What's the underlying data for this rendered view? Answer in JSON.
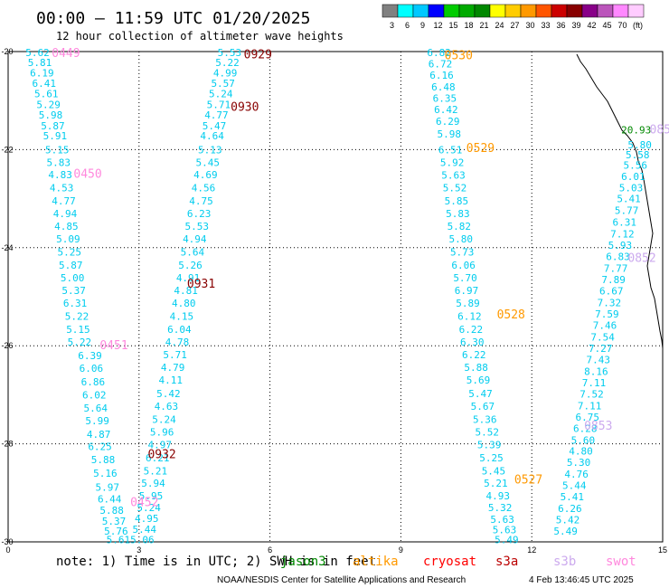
{
  "header": {
    "title": "00:00 – 11:59 UTC 01/20/2025",
    "subtitle": "12 hour collection of altimeter wave heights"
  },
  "colorbar": {
    "colors": [
      "#808080",
      "#00ffff",
      "#00c8ff",
      "#0000ff",
      "#00cc00",
      "#00aa00",
      "#008800",
      "#ffff00",
      "#ffcc00",
      "#ff9900",
      "#ff5500",
      "#cc0000",
      "#880000",
      "#880088",
      "#bb55bb",
      "#ff88ff",
      "#ffccff"
    ],
    "ticks": [
      "3",
      "6",
      "9",
      "12",
      "15",
      "18",
      "21",
      "24",
      "27",
      "30",
      "33",
      "36",
      "39",
      "42",
      "45",
      "70",
      "(ft)"
    ]
  },
  "footer": {
    "note": "note: 1) Time is in UTC; 2) SWH is in feet",
    "credit": "NOAA/NESDIS Center for Satellite Applications and Research",
    "timestamp": "4 Feb 13:46:45 UTC 2025",
    "satellites": [
      {
        "name": "jason3",
        "color": "#008800"
      },
      {
        "name": "altika",
        "color": "#ff9900"
      },
      {
        "name": "cryosat",
        "color": "#ff0000"
      },
      {
        "name": "s3a",
        "color": "#bb0000"
      },
      {
        "name": "s3b",
        "color": "#ccaaee"
      },
      {
        "name": "swot",
        "color": "#ff88dd"
      }
    ]
  },
  "chart_data": {
    "type": "scatter",
    "xlim": [
      0,
      15
    ],
    "ylim": [
      -30,
      -20
    ],
    "x_ticks": [
      "0",
      "3",
      "6",
      "9",
      "12",
      "15"
    ],
    "y_ticks": [
      "-20",
      "-22",
      "-24",
      "-26",
      "-28",
      "-30"
    ],
    "grid": true,
    "tracks": [
      {
        "color": "#00ccee",
        "points": [
          [
            0.4,
            -20.02,
            "5.62"
          ],
          [
            0.45,
            -20.22,
            "5.81"
          ],
          [
            0.5,
            -20.43,
            "6.19"
          ],
          [
            0.55,
            -20.65,
            "6.41"
          ],
          [
            0.6,
            -20.86,
            "5.61"
          ],
          [
            0.65,
            -21.08,
            "5.29"
          ],
          [
            0.7,
            -21.29,
            "5.98"
          ],
          [
            0.75,
            -21.51,
            "5.87"
          ],
          [
            0.8,
            -21.72,
            "5.91"
          ],
          [
            0.85,
            -22.0,
            "5.15"
          ],
          [
            0.88,
            -22.26,
            "5.83"
          ],
          [
            0.92,
            -22.51,
            "4.83"
          ],
          [
            0.95,
            -22.78,
            "4.53"
          ],
          [
            1.0,
            -23.04,
            "4.77"
          ],
          [
            1.03,
            -23.3,
            "4.94"
          ],
          [
            1.06,
            -23.56,
            "4.85"
          ],
          [
            1.1,
            -23.82,
            "5.09"
          ],
          [
            1.13,
            -24.09,
            "5.25"
          ],
          [
            1.16,
            -24.35,
            "5.87"
          ],
          [
            1.2,
            -24.61,
            "5.00"
          ],
          [
            1.23,
            -24.87,
            "5.37"
          ],
          [
            1.26,
            -25.13,
            "6.31"
          ],
          [
            1.3,
            -25.4,
            "5.22"
          ],
          [
            1.33,
            -25.66,
            "5.15"
          ],
          [
            1.36,
            -25.92,
            "5.22"
          ],
          [
            1.6,
            -26.2,
            "6.39"
          ],
          [
            1.63,
            -26.46,
            "6.06"
          ],
          [
            1.67,
            -26.73,
            "6.86"
          ],
          [
            1.7,
            -27.0,
            "6.02"
          ],
          [
            1.73,
            -27.27,
            "5.64"
          ],
          [
            1.77,
            -27.53,
            "5.99"
          ],
          [
            1.8,
            -27.8,
            "4.87"
          ],
          [
            1.83,
            -28.05,
            "6.25"
          ],
          [
            1.9,
            -28.32,
            "5.88"
          ],
          [
            1.95,
            -28.6,
            "5.16"
          ],
          [
            2.0,
            -28.88,
            "5.97"
          ],
          [
            2.05,
            -29.12,
            "6.44"
          ],
          [
            2.1,
            -29.35,
            "5.88"
          ],
          [
            2.15,
            -29.58,
            "5.37"
          ],
          [
            2.2,
            -29.78,
            "5.76"
          ],
          [
            2.25,
            -29.95,
            "5.61"
          ]
        ]
      },
      {
        "color": "#00ccee",
        "points": [
          [
            4.8,
            -20.02,
            "5.53"
          ],
          [
            4.75,
            -20.22,
            "5.22"
          ],
          [
            4.7,
            -20.43,
            "4.99"
          ],
          [
            4.65,
            -20.65,
            "5.57"
          ],
          [
            4.6,
            -20.86,
            "5.24"
          ],
          [
            4.55,
            -21.08,
            "5.71"
          ],
          [
            4.5,
            -21.29,
            "4.77"
          ],
          [
            4.45,
            -21.51,
            "5.47"
          ],
          [
            4.4,
            -21.72,
            "4.64"
          ],
          [
            4.35,
            -22.0,
            "5.13"
          ],
          [
            4.3,
            -22.26,
            "5.45"
          ],
          [
            4.25,
            -22.51,
            "4.69"
          ],
          [
            4.2,
            -22.78,
            "4.56"
          ],
          [
            4.15,
            -23.04,
            "4.75"
          ],
          [
            4.1,
            -23.3,
            "6.23"
          ],
          [
            4.05,
            -23.56,
            "5.53"
          ],
          [
            4.0,
            -23.82,
            "4.94"
          ],
          [
            3.95,
            -24.09,
            "5.64"
          ],
          [
            3.9,
            -24.35,
            "5.26"
          ],
          [
            3.85,
            -24.61,
            "4.91"
          ],
          [
            3.8,
            -24.87,
            "4.81"
          ],
          [
            3.75,
            -25.13,
            "4.80"
          ],
          [
            3.7,
            -25.4,
            "4.15"
          ],
          [
            3.65,
            -25.66,
            "6.04"
          ],
          [
            3.6,
            -25.92,
            "4.78"
          ],
          [
            3.55,
            -26.18,
            "5.71"
          ],
          [
            3.5,
            -26.44,
            "4.79"
          ],
          [
            3.45,
            -26.7,
            "4.11"
          ],
          [
            3.4,
            -26.97,
            "5.42"
          ],
          [
            3.35,
            -27.23,
            "4.63"
          ],
          [
            3.3,
            -27.5,
            "5.24"
          ],
          [
            3.25,
            -27.76,
            "5.96"
          ],
          [
            3.2,
            -28.02,
            "4.97"
          ],
          [
            3.15,
            -28.28,
            "6.21"
          ],
          [
            3.1,
            -28.55,
            "5.21"
          ],
          [
            3.05,
            -28.8,
            "5.94"
          ],
          [
            3.0,
            -29.06,
            "5.95"
          ],
          [
            2.95,
            -29.3,
            "5.24"
          ],
          [
            2.9,
            -29.52,
            "4.95"
          ],
          [
            2.85,
            -29.74,
            "5.44"
          ],
          [
            2.8,
            -29.95,
            "5.06"
          ]
        ]
      },
      {
        "color": "#00ccee",
        "points": [
          [
            9.6,
            -20.02,
            "6.82"
          ],
          [
            9.63,
            -20.25,
            "6.72"
          ],
          [
            9.66,
            -20.48,
            "6.16"
          ],
          [
            9.7,
            -20.72,
            "6.48"
          ],
          [
            9.73,
            -20.95,
            "6.35"
          ],
          [
            9.76,
            -21.18,
            "6.42"
          ],
          [
            9.8,
            -21.42,
            "6.29"
          ],
          [
            9.83,
            -21.68,
            "5.98"
          ],
          [
            9.86,
            -22.0,
            "6.51"
          ],
          [
            9.9,
            -22.26,
            "5.92"
          ],
          [
            9.93,
            -22.52,
            "5.63"
          ],
          [
            9.96,
            -22.78,
            "5.52"
          ],
          [
            10.0,
            -23.04,
            "5.85"
          ],
          [
            10.03,
            -23.3,
            "5.83"
          ],
          [
            10.06,
            -23.56,
            "5.82"
          ],
          [
            10.1,
            -23.82,
            "5.80"
          ],
          [
            10.13,
            -24.09,
            "5.73"
          ],
          [
            10.16,
            -24.35,
            "6.06"
          ],
          [
            10.2,
            -24.61,
            "5.70"
          ],
          [
            10.23,
            -24.87,
            "6.97"
          ],
          [
            10.26,
            -25.13,
            "5.89"
          ],
          [
            10.3,
            -25.4,
            "6.12"
          ],
          [
            10.33,
            -25.66,
            "6.22"
          ],
          [
            10.36,
            -25.92,
            "6.30"
          ],
          [
            10.4,
            -26.18,
            "6.22"
          ],
          [
            10.45,
            -26.44,
            "5.88"
          ],
          [
            10.5,
            -26.7,
            "5.69"
          ],
          [
            10.55,
            -26.97,
            "5.47"
          ],
          [
            10.6,
            -27.23,
            "5.67"
          ],
          [
            10.65,
            -27.5,
            "5.36"
          ],
          [
            10.7,
            -27.76,
            "5.52"
          ],
          [
            10.75,
            -28.02,
            "5.39"
          ],
          [
            10.8,
            -28.28,
            "5.25"
          ],
          [
            10.85,
            -28.55,
            "5.45"
          ],
          [
            10.9,
            -28.8,
            "5.21"
          ],
          [
            10.95,
            -29.06,
            "4.93"
          ],
          [
            11.0,
            -29.3,
            "5.32"
          ],
          [
            11.05,
            -29.54,
            "5.63"
          ],
          [
            11.1,
            -29.75,
            "5.63"
          ],
          [
            11.15,
            -29.95,
            "5.49"
          ]
        ]
      },
      {
        "color": "#00ccee",
        "points": [
          [
            14.2,
            -21.9,
            "5.80"
          ],
          [
            14.15,
            -22.1,
            "5.58"
          ],
          [
            14.1,
            -22.32,
            "5.56"
          ],
          [
            14.05,
            -22.55,
            "6.01"
          ],
          [
            14.0,
            -22.78,
            "5.03"
          ],
          [
            13.95,
            -23.0,
            "5.41"
          ],
          [
            13.9,
            -23.24,
            "5.77"
          ],
          [
            13.85,
            -23.48,
            "6.31"
          ],
          [
            13.8,
            -23.72,
            "7.12"
          ],
          [
            13.75,
            -23.95,
            "5.93"
          ],
          [
            13.7,
            -24.18,
            "6.83"
          ],
          [
            13.65,
            -24.42,
            "7.77"
          ],
          [
            13.6,
            -24.65,
            "7.89"
          ],
          [
            13.55,
            -24.88,
            "6.67"
          ],
          [
            13.5,
            -25.12,
            "7.32"
          ],
          [
            13.45,
            -25.35,
            "7.59"
          ],
          [
            13.4,
            -25.58,
            "7.46"
          ],
          [
            13.35,
            -25.82,
            "7.54"
          ],
          [
            13.3,
            -26.05,
            "7.27"
          ],
          [
            13.25,
            -26.28,
            "7.43"
          ],
          [
            13.2,
            -26.52,
            "8.16"
          ],
          [
            13.15,
            -26.75,
            "7.11"
          ],
          [
            13.1,
            -26.98,
            "7.52"
          ],
          [
            13.05,
            -27.22,
            "7.11"
          ],
          [
            13.0,
            -27.45,
            "6.75"
          ],
          [
            12.95,
            -27.68,
            "6.28"
          ],
          [
            12.9,
            -27.92,
            "5.60"
          ],
          [
            12.85,
            -28.15,
            "4.80"
          ],
          [
            12.8,
            -28.38,
            "5.30"
          ],
          [
            12.75,
            -28.62,
            "4.76"
          ],
          [
            12.7,
            -28.85,
            "5.44"
          ],
          [
            12.65,
            -29.08,
            "5.41"
          ],
          [
            12.6,
            -29.32,
            "6.26"
          ],
          [
            12.55,
            -29.55,
            "5.42"
          ],
          [
            12.5,
            -29.78,
            "5.49"
          ]
        ]
      }
    ],
    "extra_values": [
      {
        "x": 14.05,
        "y": -21.6,
        "text": "20.93",
        "color": "#008800"
      }
    ],
    "pass_labels": [
      {
        "x": 1.0,
        "y": -20.02,
        "text": "0449",
        "color": "#ff88dd"
      },
      {
        "x": 1.5,
        "y": -22.48,
        "text": "0450",
        "color": "#ff88dd"
      },
      {
        "x": 2.1,
        "y": -25.98,
        "text": "0451",
        "color": "#ff88dd"
      },
      {
        "x": 2.8,
        "y": -29.18,
        "text": "0452",
        "color": "#ff88dd"
      },
      {
        "x": 5.4,
        "y": -20.05,
        "text": "0929",
        "color": "#880000"
      },
      {
        "x": 5.1,
        "y": -21.12,
        "text": "0930",
        "color": "#880000"
      },
      {
        "x": 4.1,
        "y": -24.72,
        "text": "0931",
        "color": "#880000"
      },
      {
        "x": 3.2,
        "y": -28.2,
        "text": "0932",
        "color": "#880000"
      },
      {
        "x": 10.0,
        "y": -20.06,
        "text": "0530",
        "color": "#ff9900"
      },
      {
        "x": 10.5,
        "y": -21.96,
        "text": "0529",
        "color": "#ff9900"
      },
      {
        "x": 11.2,
        "y": -25.35,
        "text": "0528",
        "color": "#ff9900"
      },
      {
        "x": 11.6,
        "y": -28.72,
        "text": "0527",
        "color": "#ff9900"
      },
      {
        "x": 14.7,
        "y": -21.58,
        "text": "085",
        "color": "#ccaaee"
      },
      {
        "x": 14.2,
        "y": -24.2,
        "text": "0852",
        "color": "#ccaaee"
      },
      {
        "x": 13.2,
        "y": -27.62,
        "text": "0853",
        "color": "#ccaaee"
      }
    ]
  }
}
